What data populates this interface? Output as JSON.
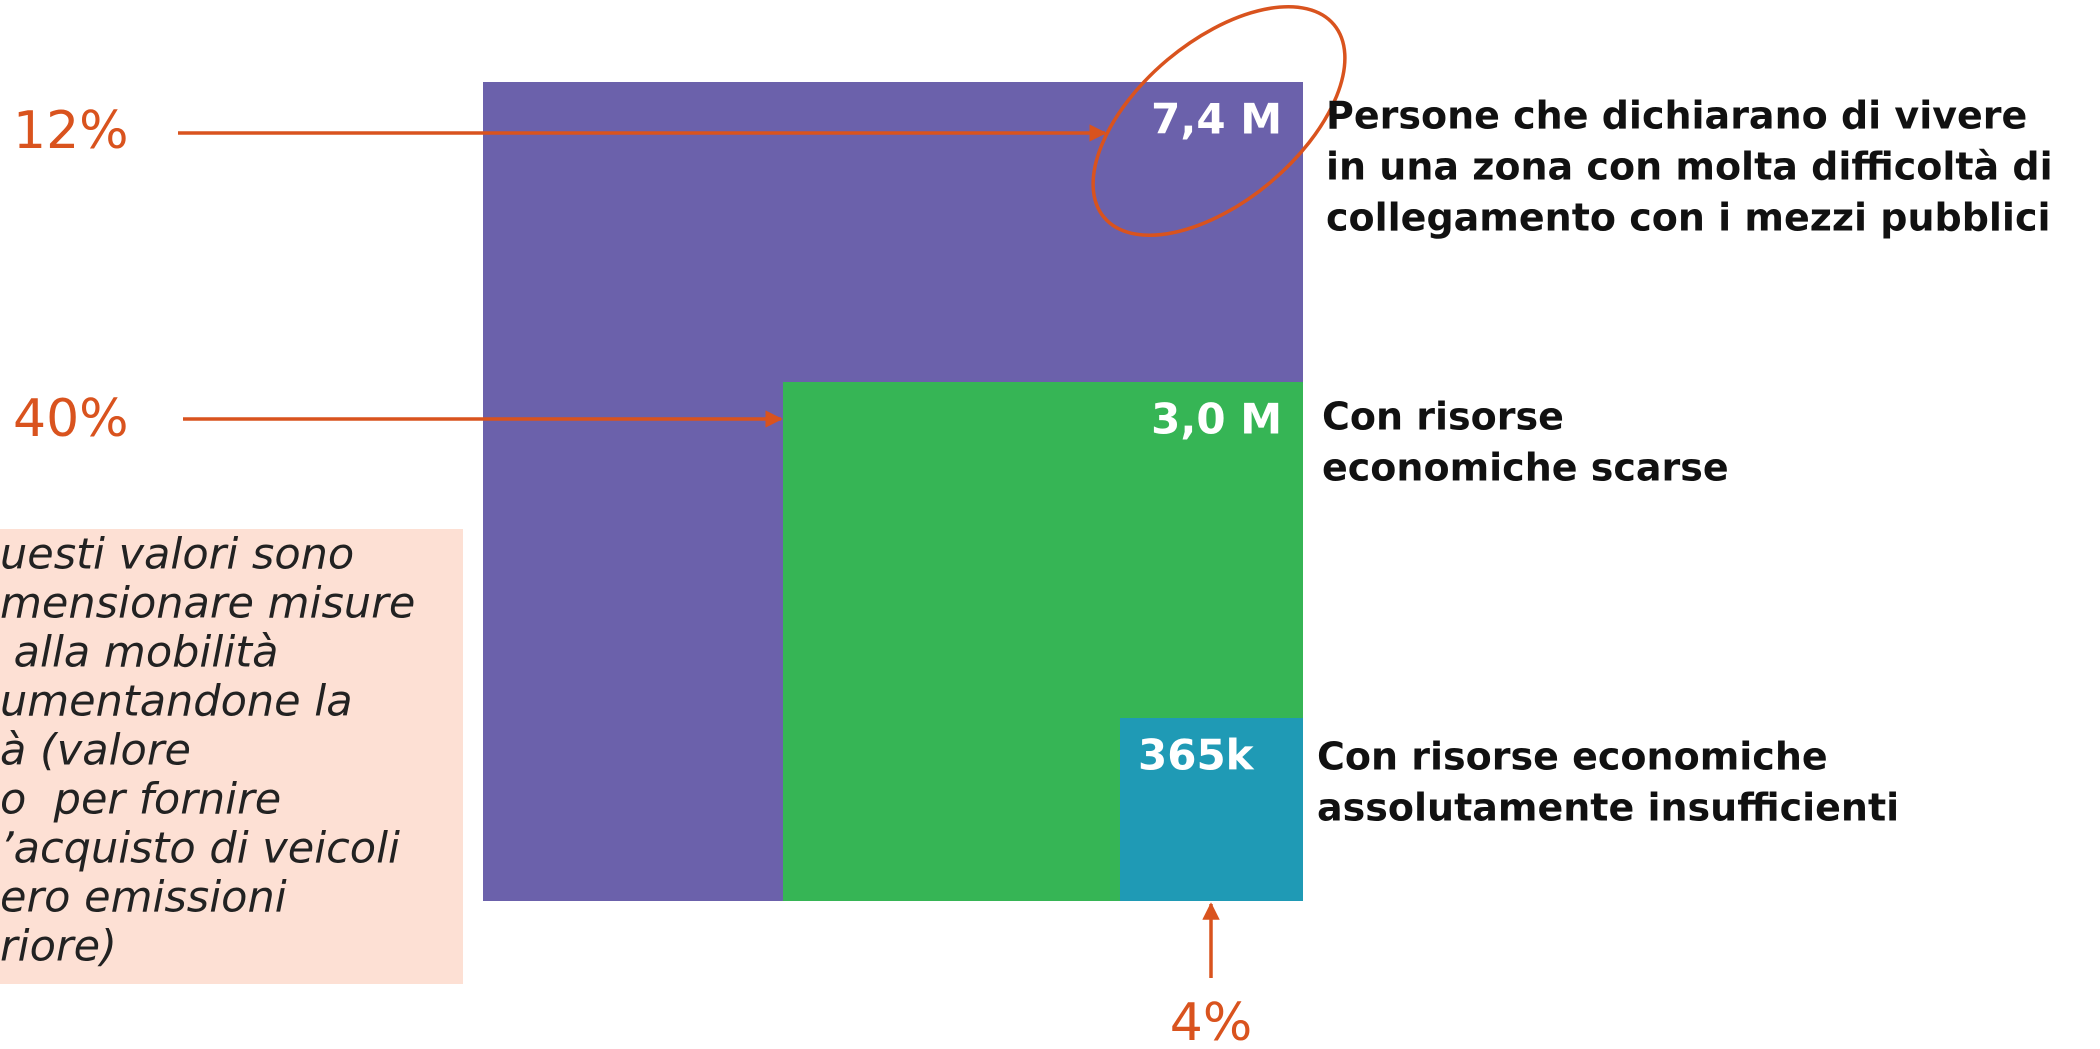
{
  "items": [
    {
      "value": "7,4 M",
      "percent": "12%",
      "description": [
        "Persone che dichiarano di vivere",
        "in una zona con molta difficoltà di",
        "collegamento con i mezzi pubblici"
      ]
    },
    {
      "value": "3,0 M",
      "percent": "40%",
      "description": [
        "Con risorse",
        "economiche scarse"
      ]
    },
    {
      "value": "365k",
      "percent": "4%",
      "description": [
        "Con risorse economiche",
        "assolutamente insufficienti"
      ]
    }
  ],
  "note": [
    "uesti valori sono",
    "mensionare misure",
    " alla mobilità",
    "umentandone la",
    "à (valore",
    "o  per fornire",
    "’acquisto di veicoli",
    "ero emissioni",
    "riore)"
  ]
}
